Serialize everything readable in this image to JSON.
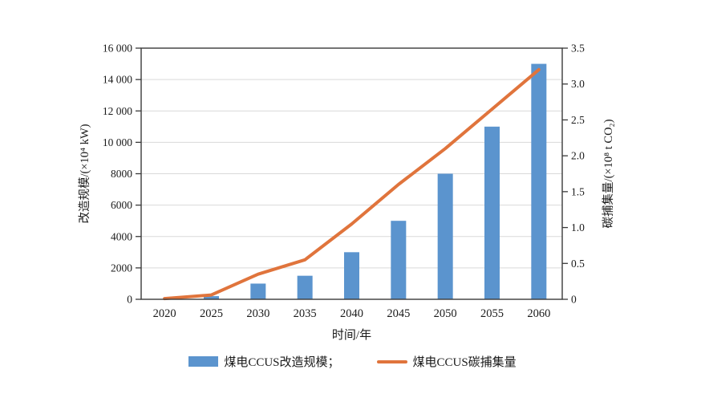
{
  "figure": {
    "xlabel": "时间/年",
    "ylabel_left": "改造规模/(×10⁴ kW)",
    "ylabel_right": "碳捕集量/(×10⁸ t CO₂)"
  },
  "legend": {
    "items": [
      {
        "label": "煤电CCUS改造规模；",
        "swatch": "bar",
        "color": "#5B94CE"
      },
      {
        "label": "煤电CCUS碳捕集量",
        "swatch": "line",
        "color": "#E0743C"
      }
    ]
  },
  "chart_data": {
    "type": "bar+line",
    "categories": [
      "2020",
      "2025",
      "2030",
      "2035",
      "2040",
      "2045",
      "2050",
      "2055",
      "2060"
    ],
    "series": [
      {
        "name": "煤电CCUS改造规模",
        "chart_type": "bar",
        "axis": "left",
        "color": "#5B94CE",
        "values": [
          0,
          200,
          1000,
          1500,
          3000,
          5000,
          8000,
          11000,
          15000
        ]
      },
      {
        "name": "煤电CCUS碳捕集量",
        "chart_type": "line",
        "axis": "right",
        "color": "#E0743C",
        "values": [
          0.01,
          0.06,
          0.35,
          0.55,
          1.05,
          1.6,
          2.1,
          2.65,
          3.2
        ]
      }
    ],
    "title": "",
    "xlabel": "时间/年",
    "ylabel_left": "改造规模/(×10⁴ kW)",
    "ylabel_right": "碳捕集量/(×10⁸ t CO₂)",
    "axis_left": {
      "min": 0,
      "max": 16000,
      "tick_labels": [
        "16 000",
        "14 000",
        "12 000",
        "10 000",
        "8000",
        "6000",
        "4000",
        "2000",
        "0"
      ]
    },
    "axis_right": {
      "min": 0,
      "max": 3.5,
      "tick_labels": [
        "3.5",
        "3.0",
        "2.5",
        "2.0",
        "1.5",
        "1.0",
        "0.5",
        "0"
      ]
    },
    "grid": "horizontal",
    "legend_position": "bottom"
  },
  "colors": {
    "bar": "#5B94CE",
    "line": "#E0743C",
    "grid": "#D9D9D9",
    "frame": "#3A3A3A",
    "text": "#1A1A1A",
    "background": "#FFFFFF"
  }
}
